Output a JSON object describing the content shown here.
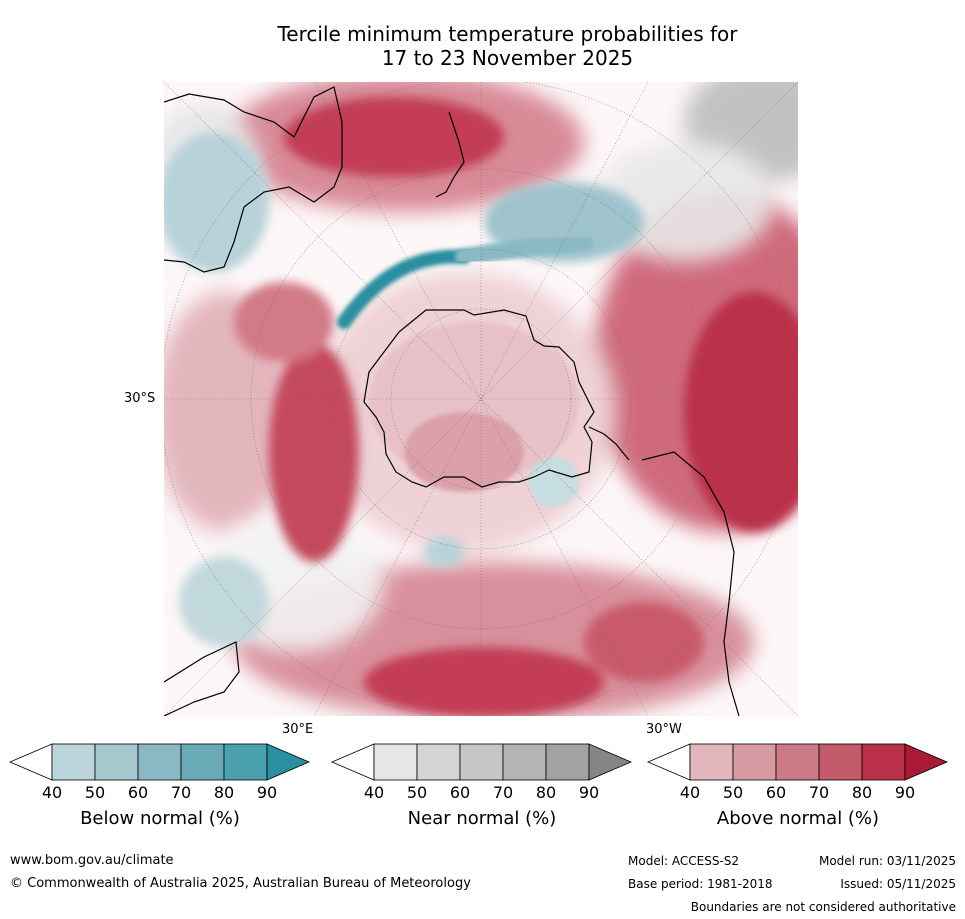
{
  "title": {
    "line1": "Tercile minimum temperature probabilities for",
    "line2": "17 to 23 November 2025"
  },
  "map": {
    "label_lat": "30°S",
    "label_east": "30°E",
    "label_west": "30°W",
    "projection": "south-polar-stereographic",
    "regions_shown": [
      "Antarctica",
      "Australia",
      "New Zealand",
      "South America",
      "Southern Africa"
    ]
  },
  "legends": {
    "below": {
      "title": "Below normal (%)",
      "ticks": [
        "40",
        "50",
        "60",
        "70",
        "80",
        "90"
      ],
      "colors": [
        "#ffffff",
        "#bcd5dc",
        "#a6c8cf",
        "#8ab9c4",
        "#6aabb7",
        "#4aa0ad",
        "#2a8fa0"
      ]
    },
    "near": {
      "title": "Near normal (%)",
      "ticks": [
        "40",
        "50",
        "60",
        "70",
        "80",
        "90"
      ],
      "colors": [
        "#ffffff",
        "#e6e6e6",
        "#d5d5d5",
        "#c6c6c6",
        "#b4b4b4",
        "#a2a2a2",
        "#858585"
      ]
    },
    "above": {
      "title": "Above normal (%)",
      "ticks": [
        "40",
        "50",
        "60",
        "70",
        "80",
        "90"
      ],
      "colors": [
        "#ffffff",
        "#e3b6bd",
        "#d799a2",
        "#cc7b86",
        "#c45b6b",
        "#ba3049",
        "#a81a36"
      ]
    }
  },
  "footer": {
    "website": "www.bom.gov.au/climate",
    "copyright": "© Commonwealth of Australia 2025, Australian Bureau of Meteorology",
    "model": "Model: ACCESS-S2",
    "base_period": "Base period: 1981-2018",
    "model_run": "Model run: 03/11/2025",
    "issued": "Issued: 05/11/2025",
    "disclaimer": "Boundaries are not considered authoritative"
  }
}
